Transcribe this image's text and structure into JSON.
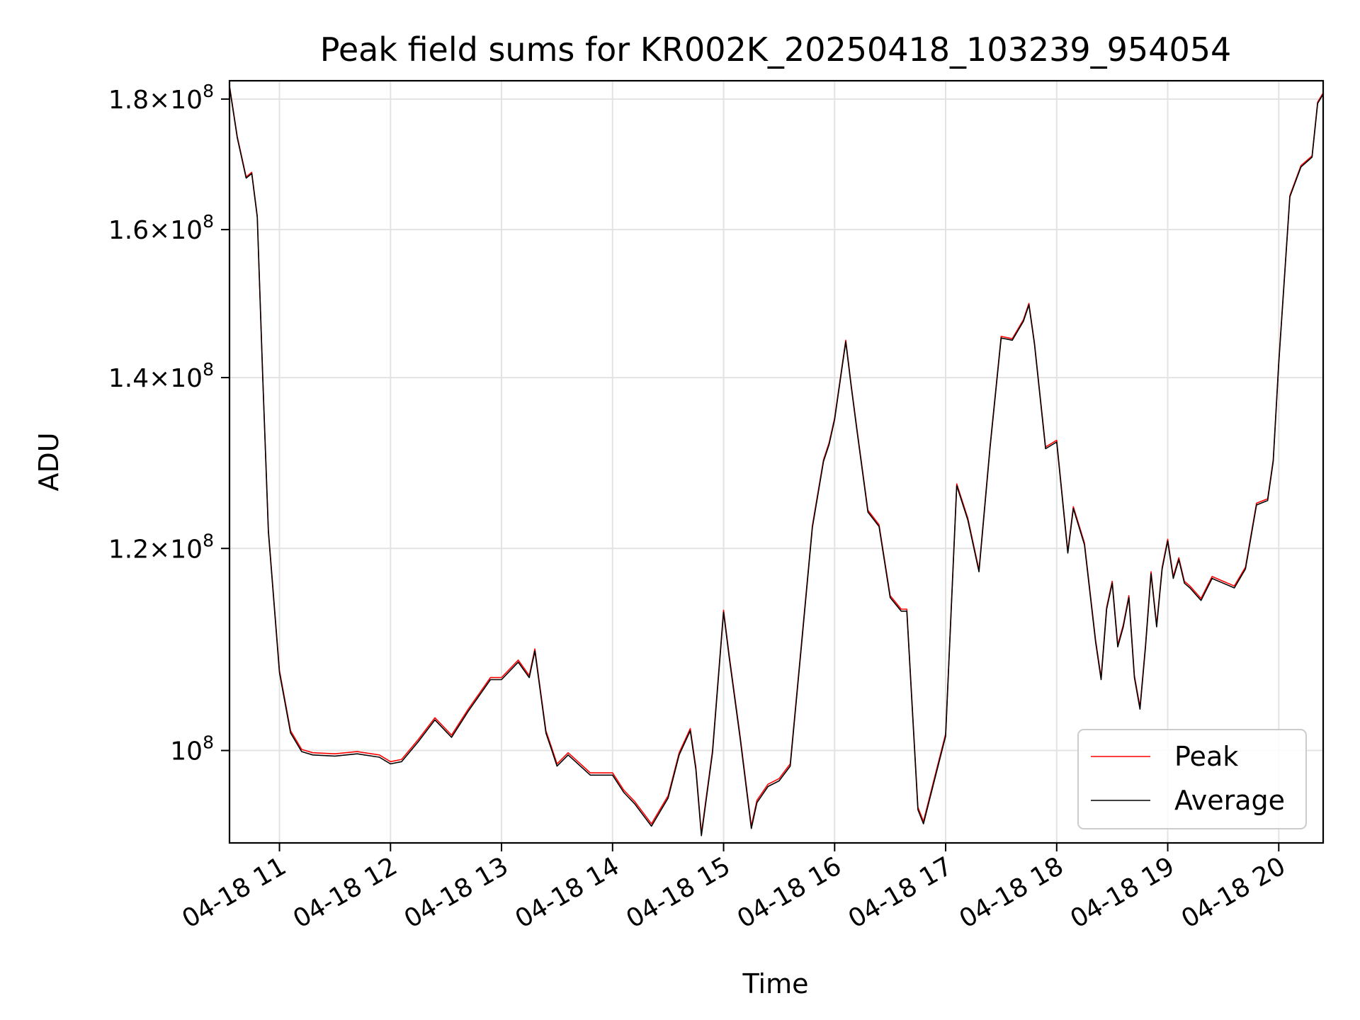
{
  "chart_data": {
    "type": "line",
    "title": "Peak field sums for KR002K_20250418_103239_954054",
    "xlabel": "Time",
    "ylabel": "ADU",
    "y_scale": "log",
    "ylim": [
      92000000,
      183000000
    ],
    "xlim_hours": [
      10.55,
      20.4
    ],
    "grid": true,
    "legend_position": "lower-right",
    "x_ticks": [
      {
        "hour": 11,
        "label": "04-18 11"
      },
      {
        "hour": 12,
        "label": "04-18 12"
      },
      {
        "hour": 13,
        "label": "04-18 13"
      },
      {
        "hour": 14,
        "label": "04-18 14"
      },
      {
        "hour": 15,
        "label": "04-18 15"
      },
      {
        "hour": 16,
        "label": "04-18 16"
      },
      {
        "hour": 17,
        "label": "04-18 17"
      },
      {
        "hour": 18,
        "label": "04-18 18"
      },
      {
        "hour": 19,
        "label": "04-18 19"
      },
      {
        "hour": 20,
        "label": "04-18 20"
      }
    ],
    "y_ticks": [
      {
        "value": 100000000,
        "mantissa": "",
        "base": "10",
        "exp": "8"
      },
      {
        "value": 120000000,
        "mantissa": "1.2",
        "base": "10",
        "exp": "8"
      },
      {
        "value": 140000000,
        "mantissa": "1.4",
        "base": "10",
        "exp": "8"
      },
      {
        "value": 160000000,
        "mantissa": "1.6",
        "base": "10",
        "exp": "8"
      },
      {
        "value": 180000000,
        "mantissa": "1.8",
        "base": "10",
        "exp": "8"
      }
    ],
    "x_hours": [
      10.55,
      10.62,
      10.7,
      10.75,
      10.8,
      10.85,
      10.9,
      11.0,
      11.1,
      11.2,
      11.3,
      11.5,
      11.7,
      11.9,
      12.0,
      12.1,
      12.25,
      12.4,
      12.55,
      12.7,
      12.9,
      13.0,
      13.15,
      13.25,
      13.3,
      13.4,
      13.45,
      13.5,
      13.6,
      13.8,
      14.0,
      14.1,
      14.2,
      14.35,
      14.5,
      14.6,
      14.7,
      14.75,
      14.8,
      14.9,
      15.0,
      15.05,
      15.15,
      15.25,
      15.3,
      15.4,
      15.5,
      15.6,
      15.7,
      15.8,
      15.9,
      15.95,
      16.0,
      16.1,
      16.15,
      16.2,
      16.3,
      16.4,
      16.5,
      16.6,
      16.65,
      16.75,
      16.8,
      16.9,
      17.0,
      17.1,
      17.2,
      17.3,
      17.4,
      17.5,
      17.6,
      17.7,
      17.75,
      17.8,
      17.9,
      18.0,
      18.1,
      18.15,
      18.25,
      18.35,
      18.4,
      18.45,
      18.5,
      18.55,
      18.6,
      18.65,
      18.7,
      18.75,
      18.8,
      18.85,
      18.9,
      18.95,
      19.0,
      19.05,
      19.1,
      19.15,
      19.2,
      19.3,
      19.4,
      19.5,
      19.6,
      19.7,
      19.8,
      19.9,
      19.95,
      20.0,
      20.1,
      20.2,
      20.3,
      20.35,
      20.4
    ],
    "series": [
      {
        "name": "Peak",
        "color": "#ff0000",
        "values": [
          182200000,
          174000000,
          167800000,
          168500000,
          162000000,
          140000000,
          122000000,
          107500000,
          101800000,
          100100000,
          99800000,
          99700000,
          99900000,
          99600000,
          99000000,
          99200000,
          101000000,
          103000000,
          101400000,
          103800000,
          106800000,
          106800000,
          108500000,
          107000000,
          109600000,
          101800000,
          100300000,
          98800000,
          99800000,
          98000000,
          98000000,
          96500000,
          95500000,
          93600000,
          96000000,
          99800000,
          102000000,
          98500000,
          92800000,
          100000000,
          113500000,
          109000000,
          101200000,
          93400000,
          95600000,
          97000000,
          97500000,
          98800000,
          110000000,
          122500000,
          130000000,
          132000000,
          135000000,
          144800000,
          139000000,
          133800000,
          124200000,
          122600000,
          115000000,
          113600000,
          113600000,
          95000000,
          93800000,
          97600000,
          101500000,
          127200000,
          123300000,
          117700000,
          131600000,
          145300000,
          145000000,
          147500000,
          149700000,
          144500000,
          131500000,
          132300000,
          119700000,
          124600000,
          120600000,
          110500000,
          106800000,
          113800000,
          116500000,
          110000000,
          112000000,
          115000000,
          107000000,
          104000000,
          110000000,
          117500000,
          112000000,
          118000000,
          121000000,
          117000000,
          119000000,
          116500000,
          116000000,
          114700000,
          117000000,
          116500000,
          116000000,
          118000000,
          125000000,
          125500000,
          130000000,
          142000000,
          165000000,
          169500000,
          171000000,
          179500000,
          181000000
        ]
      },
      {
        "name": "Average",
        "color": "#000000",
        "values": [
          182000000,
          173800000,
          167600000,
          168300000,
          161800000,
          139800000,
          121800000,
          107300000,
          101600000,
          99900000,
          99600000,
          99500000,
          99700000,
          99400000,
          98800000,
          99000000,
          100800000,
          102800000,
          101200000,
          103600000,
          106600000,
          106600000,
          108300000,
          106800000,
          109400000,
          101600000,
          100100000,
          98600000,
          99600000,
          97800000,
          97800000,
          96300000,
          95300000,
          93400000,
          95800000,
          99600000,
          101800000,
          98300000,
          92600000,
          99800000,
          113300000,
          108800000,
          101000000,
          93200000,
          95400000,
          96800000,
          97300000,
          98600000,
          109800000,
          122300000,
          129800000,
          131800000,
          134800000,
          144600000,
          138800000,
          133600000,
          124000000,
          122400000,
          114800000,
          113400000,
          113400000,
          94800000,
          93600000,
          97400000,
          101300000,
          127000000,
          123100000,
          117500000,
          131400000,
          145100000,
          144800000,
          147300000,
          149500000,
          144300000,
          131300000,
          132100000,
          119500000,
          124400000,
          120400000,
          110300000,
          106600000,
          113600000,
          116300000,
          109800000,
          111800000,
          114800000,
          106800000,
          103800000,
          109800000,
          117300000,
          111800000,
          117800000,
          120800000,
          116800000,
          118800000,
          116300000,
          115800000,
          114500000,
          116800000,
          116300000,
          115800000,
          117800000,
          124800000,
          125300000,
          129800000,
          141800000,
          164800000,
          169300000,
          170800000,
          179300000,
          180800000
        ]
      }
    ]
  }
}
